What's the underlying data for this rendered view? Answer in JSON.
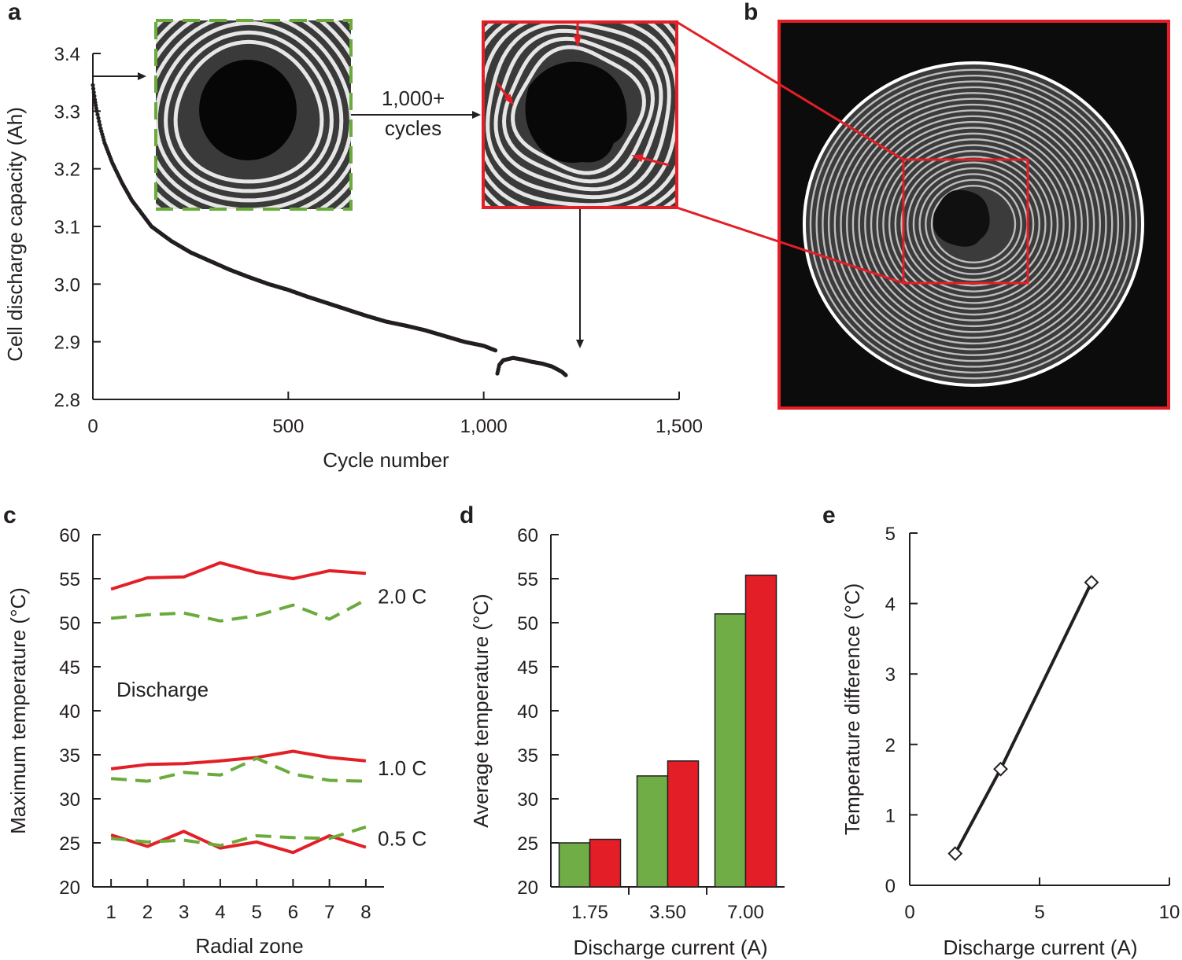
{
  "colors": {
    "red": "#e41e26",
    "green": "#70ad47",
    "dashed_green": "#6aab3c",
    "black": "#231f20",
    "ct_background": "#0c0c0c"
  },
  "panels": {
    "a": "a",
    "b": "b",
    "c": "c",
    "d": "d",
    "e": "e"
  },
  "annotations": {
    "cycles_line1": "1,000+",
    "cycles_line2": "cycles",
    "discharge": "Discharge"
  },
  "chart_data": [
    {
      "id": "a",
      "type": "scatter",
      "xlabel": "Cycle number",
      "ylabel": "Cell discharge capacity (Ah)",
      "xlim": [
        0,
        1500
      ],
      "ylim": [
        2.8,
        3.4
      ],
      "xticks": [
        0,
        500,
        1000,
        1500
      ],
      "xtick_labels": [
        "0",
        "500",
        "1,000",
        "1,500"
      ],
      "yticks": [
        2.8,
        2.9,
        3.0,
        3.1,
        3.2,
        3.3,
        3.4
      ],
      "ytick_labels": [
        "2.8",
        "2.9",
        "3.0",
        "3.1",
        "3.2",
        "3.3",
        "3.4"
      ],
      "series": [
        {
          "x": [
            0,
            5,
            10,
            20,
            30,
            50,
            75,
            100,
            150,
            200,
            250,
            300,
            350,
            400,
            450,
            500,
            550,
            600,
            650,
            700,
            750,
            800,
            850,
            900,
            950,
            1000,
            1030
          ],
          "y": [
            3.345,
            3.32,
            3.3,
            3.27,
            3.245,
            3.21,
            3.175,
            3.145,
            3.1,
            3.075,
            3.055,
            3.04,
            3.025,
            3.012,
            3.0,
            2.99,
            2.978,
            2.967,
            2.956,
            2.945,
            2.935,
            2.928,
            2.92,
            2.91,
            2.9,
            2.893,
            2.885
          ]
        },
        {
          "x": [
            1035,
            1040,
            1050,
            1075,
            1100,
            1125,
            1150,
            1175,
            1200,
            1210
          ],
          "y": [
            2.845,
            2.86,
            2.868,
            2.872,
            2.869,
            2.865,
            2.862,
            2.857,
            2.848,
            2.842
          ]
        }
      ]
    },
    {
      "id": "c",
      "type": "line",
      "xlabel": "Radial zone",
      "ylabel": "Maximum temperature (°C)",
      "xlim": [
        0.5,
        8.5
      ],
      "ylim": [
        20,
        60
      ],
      "x": [
        1,
        2,
        3,
        4,
        5,
        6,
        7,
        8
      ],
      "yticks": [
        20,
        25,
        30,
        35,
        40,
        45,
        50,
        55,
        60
      ],
      "rate_labels": [
        "2.0 C",
        "1.0 C",
        "0.5 C"
      ],
      "series": [
        {
          "rate": "2.0 C",
          "style": "solid-red",
          "values": [
            53.8,
            55.1,
            55.2,
            56.8,
            55.7,
            55.0,
            55.9,
            55.6
          ]
        },
        {
          "rate": "2.0 C",
          "style": "dashed-green",
          "values": [
            50.5,
            50.9,
            51.1,
            50.2,
            50.8,
            52.0,
            50.4,
            52.6
          ]
        },
        {
          "rate": "1.0 C",
          "style": "solid-red",
          "values": [
            33.4,
            33.9,
            34.0,
            34.3,
            34.7,
            35.4,
            34.7,
            34.3
          ]
        },
        {
          "rate": "1.0 C",
          "style": "dashed-green",
          "values": [
            32.3,
            32.0,
            33.0,
            32.7,
            34.6,
            32.8,
            32.1,
            32.0
          ]
        },
        {
          "rate": "0.5 C",
          "style": "solid-red",
          "values": [
            25.9,
            24.6,
            26.3,
            24.4,
            25.1,
            23.9,
            25.8,
            24.5
          ]
        },
        {
          "rate": "0.5 C",
          "style": "dashed-green",
          "values": [
            25.5,
            25.1,
            25.3,
            24.7,
            25.8,
            25.6,
            25.5,
            26.8
          ]
        }
      ]
    },
    {
      "id": "d",
      "type": "bar",
      "xlabel": "Discharge current (A)",
      "ylabel": "Average temperature (°C)",
      "categories": [
        "1.75",
        "3.50",
        "7.00"
      ],
      "ylim": [
        20,
        60
      ],
      "yticks": [
        20,
        25,
        30,
        35,
        40,
        45,
        50,
        55,
        60
      ],
      "series": [
        {
          "color": "green",
          "values": [
            25.0,
            32.6,
            51.0
          ]
        },
        {
          "color": "red",
          "values": [
            25.4,
            34.3,
            55.4
          ]
        }
      ]
    },
    {
      "id": "e",
      "type": "line",
      "xlabel": "Discharge current (A)",
      "ylabel": "Temperature difference  (°C)",
      "xlim": [
        0,
        10
      ],
      "ylim": [
        0,
        5
      ],
      "xticks": [
        0,
        5,
        10
      ],
      "yticks": [
        0,
        1,
        2,
        3,
        4,
        5
      ],
      "series": [
        {
          "x": [
            1.75,
            3.5,
            7.0
          ],
          "y": [
            0.45,
            1.65,
            4.3
          ],
          "marker": "diamond"
        }
      ]
    }
  ]
}
